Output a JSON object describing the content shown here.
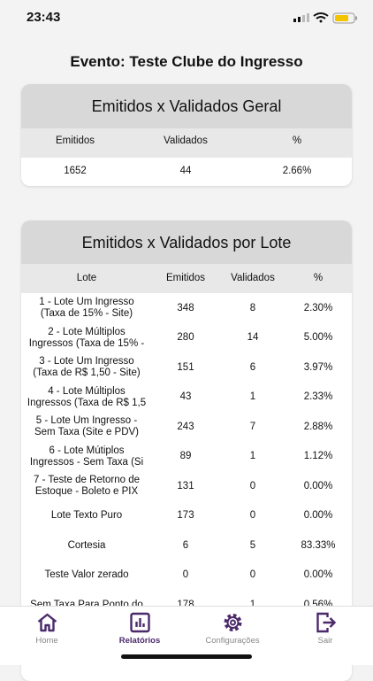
{
  "status_bar": {
    "time": "23:43"
  },
  "title": "Evento: Teste Clube do Ingresso",
  "general_card": {
    "title": "Emitidos x Validados Geral",
    "columns": [
      "Emitidos",
      "Validados",
      "%"
    ],
    "row": [
      "1652",
      "44",
      "2.66%"
    ]
  },
  "lot_card": {
    "title": "Emitidos x Validados por Lote",
    "columns": [
      "Lote",
      "Emitidos",
      "Validados",
      "%"
    ],
    "rows": [
      {
        "lote": [
          "1 - Lote Um Ingresso",
          "(Taxa de 15% - Site)"
        ],
        "emitidos": "348",
        "validados": "8",
        "percent": "2.30%"
      },
      {
        "lote": [
          "2 - Lote Múltiplos",
          "Ingressos (Taxa de 15% -"
        ],
        "emitidos": "280",
        "validados": "14",
        "percent": "5.00%"
      },
      {
        "lote": [
          "3 - Lote Um Ingresso",
          "(Taxa de R$ 1,50 - Site)"
        ],
        "emitidos": "151",
        "validados": "6",
        "percent": "3.97%"
      },
      {
        "lote": [
          "4 - Lote Múltiplos",
          "Ingressos (Taxa de R$ 1,5"
        ],
        "emitidos": "43",
        "validados": "1",
        "percent": "2.33%"
      },
      {
        "lote": [
          "5 - Lote Um Ingresso -",
          "Sem Taxa (Site e PDV)"
        ],
        "emitidos": "243",
        "validados": "7",
        "percent": "2.88%"
      },
      {
        "lote": [
          "6 - Lote Mútiplos",
          "Ingressos - Sem Taxa (Si"
        ],
        "emitidos": "89",
        "validados": "1",
        "percent": "1.12%"
      },
      {
        "lote": [
          "7 - Teste de Retorno de",
          "Estoque - Boleto e PIX"
        ],
        "emitidos": "131",
        "validados": "0",
        "percent": "0.00%"
      },
      {
        "lote": [
          "Lote Texto Puro"
        ],
        "emitidos": "173",
        "validados": "0",
        "percent": "0.00%"
      },
      {
        "lote": [
          "Cortesia"
        ],
        "emitidos": "6",
        "validados": "5",
        "percent": "83.33%"
      },
      {
        "lote": [
          "Teste Valor zerado"
        ],
        "emitidos": "0",
        "validados": "0",
        "percent": "0.00%"
      },
      {
        "lote": [
          "Sem Taxa Para Ponto do"
        ],
        "emitidos": "178",
        "validados": "1",
        "percent": "0.56%"
      }
    ]
  },
  "tab_bar": {
    "tabs": [
      "Home",
      "Relatórios",
      "Configurações",
      "Sair"
    ]
  }
}
